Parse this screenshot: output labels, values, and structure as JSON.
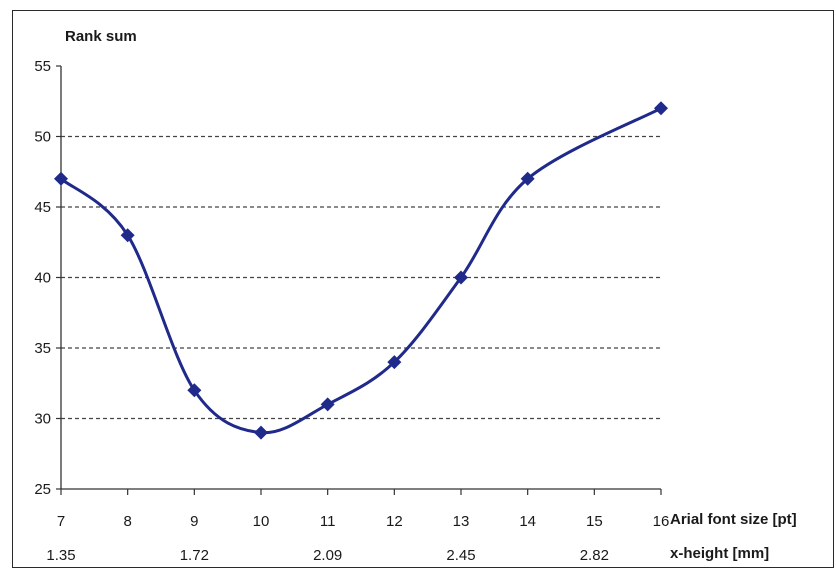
{
  "chart_data": {
    "type": "line",
    "ylabel": "Rank sum",
    "xlabel": "Arial font size [pt]",
    "secondary_xlabel": "x-height [mm]",
    "x": [
      7,
      8,
      9,
      10,
      11,
      12,
      13,
      14,
      15,
      16
    ],
    "x_tick_labels": [
      "7",
      "8",
      "9",
      "10",
      "11",
      "12",
      "13",
      "14",
      "15",
      "16"
    ],
    "secondary_x_ticks": [
      {
        "x": 7,
        "label": "1.35"
      },
      {
        "x": 9,
        "label": "1.72"
      },
      {
        "x": 11,
        "label": "2.09"
      },
      {
        "x": 13,
        "label": "2.45"
      },
      {
        "x": 15,
        "label": "2.82"
      }
    ],
    "series": [
      {
        "x": [
          7,
          8,
          9,
          10,
          11,
          12,
          13,
          14,
          16
        ],
        "values": [
          47,
          43,
          32,
          29,
          31,
          34,
          40,
          47,
          52
        ],
        "color": "#1f2a8a",
        "marker": "diamond",
        "smooth": true
      }
    ],
    "xlim": [
      7,
      16
    ],
    "ylim": [
      25,
      55
    ],
    "y_ticks": [
      25,
      30,
      35,
      40,
      45,
      50,
      55
    ],
    "grid": {
      "y": true,
      "style": "dashed"
    }
  }
}
